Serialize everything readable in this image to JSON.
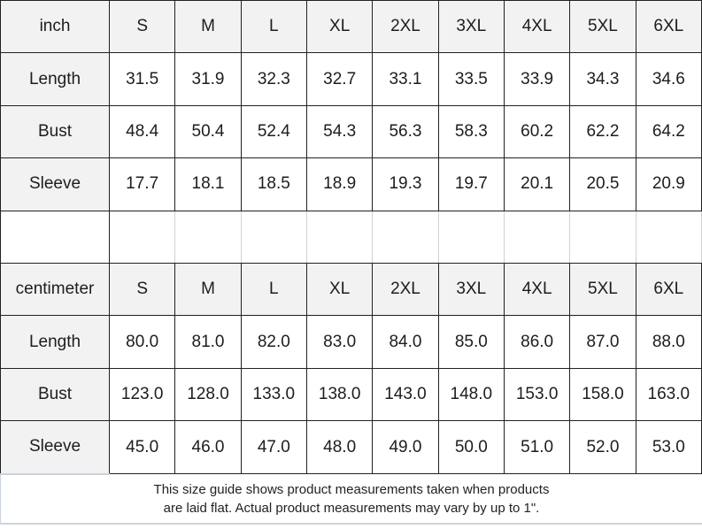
{
  "colors": {
    "cell_fill": "#f2f2f2",
    "border_dark": "#212121",
    "border_light": "#ccd3dc",
    "text": "#1d1d1d"
  },
  "sections": [
    {
      "unit": "inch",
      "sizes": [
        "S",
        "M",
        "L",
        "XL",
        "2XL",
        "3XL",
        "4XL",
        "5XL",
        "6XL"
      ],
      "rows": [
        {
          "label": "Length",
          "values": [
            "31.5",
            "31.9",
            "32.3",
            "32.7",
            "33.1",
            "33.5",
            "33.9",
            "34.3",
            "34.6"
          ]
        },
        {
          "label": "Bust",
          "values": [
            "48.4",
            "50.4",
            "52.4",
            "54.3",
            "56.3",
            "58.3",
            "60.2",
            "62.2",
            "64.2"
          ]
        },
        {
          "label": "Sleeve",
          "values": [
            "17.7",
            "18.1",
            "18.5",
            "18.9",
            "19.3",
            "19.7",
            "20.1",
            "20.5",
            "20.9"
          ]
        }
      ]
    },
    {
      "unit": "centimeter",
      "sizes": [
        "S",
        "M",
        "L",
        "XL",
        "2XL",
        "3XL",
        "4XL",
        "5XL",
        "6XL"
      ],
      "rows": [
        {
          "label": "Length",
          "values": [
            "80.0",
            "81.0",
            "82.0",
            "83.0",
            "84.0",
            "85.0",
            "86.0",
            "87.0",
            "88.0"
          ]
        },
        {
          "label": "Bust",
          "values": [
            "123.0",
            "128.0",
            "133.0",
            "138.0",
            "143.0",
            "148.0",
            "153.0",
            "158.0",
            "163.0"
          ]
        },
        {
          "label": "Sleeve",
          "values": [
            "45.0",
            "46.0",
            "47.0",
            "48.0",
            "49.0",
            "50.0",
            "51.0",
            "52.0",
            "53.0"
          ]
        }
      ]
    }
  ],
  "footer": {
    "line1": "This size guide shows product measurements taken when products",
    "line2": "are laid flat. Actual product measurements may vary by up to 1\"."
  },
  "chart_data": [
    {
      "type": "table",
      "title": "inch",
      "columns": [
        "inch",
        "S",
        "M",
        "L",
        "XL",
        "2XL",
        "3XL",
        "4XL",
        "5XL",
        "6XL"
      ],
      "rows": [
        [
          "Length",
          31.5,
          31.9,
          32.3,
          32.7,
          33.1,
          33.5,
          33.9,
          34.3,
          34.6
        ],
        [
          "Bust",
          48.4,
          50.4,
          52.4,
          54.3,
          56.3,
          58.3,
          60.2,
          62.2,
          64.2
        ],
        [
          "Sleeve",
          17.7,
          18.1,
          18.5,
          18.9,
          19.3,
          19.7,
          20.1,
          20.5,
          20.9
        ]
      ]
    },
    {
      "type": "table",
      "title": "centimeter",
      "columns": [
        "centimeter",
        "S",
        "M",
        "L",
        "XL",
        "2XL",
        "3XL",
        "4XL",
        "5XL",
        "6XL"
      ],
      "rows": [
        [
          "Length",
          80.0,
          81.0,
          82.0,
          83.0,
          84.0,
          85.0,
          86.0,
          87.0,
          88.0
        ],
        [
          "Bust",
          123.0,
          128.0,
          133.0,
          138.0,
          143.0,
          148.0,
          153.0,
          158.0,
          163.0
        ],
        [
          "Sleeve",
          45.0,
          46.0,
          47.0,
          48.0,
          49.0,
          50.0,
          51.0,
          52.0,
          53.0
        ]
      ]
    }
  ]
}
